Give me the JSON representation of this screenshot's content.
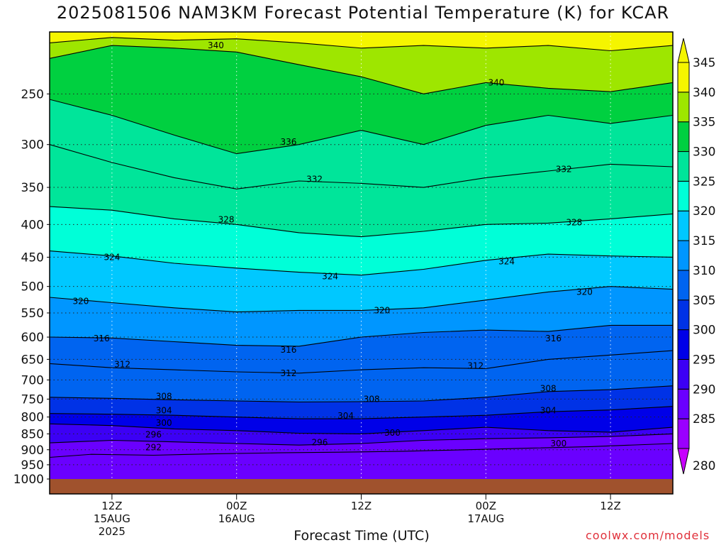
{
  "header": {
    "title": "2025081506 NAM3KM Forecast Potential Temperature (K) for KCAR"
  },
  "footer": {
    "credit": "coolwx.com/models"
  },
  "chart_data": {
    "type": "heatmap",
    "title": "2025081506 NAM3KM Forecast Potential Temperature (K) for KCAR",
    "xlabel": "Forecast Time (UTC)",
    "ylabel": "",
    "x_range_hours": [
      0,
      60
    ],
    "y_range_hpa": [
      1000,
      200
    ],
    "y_scale": "log-pressure",
    "grid": true,
    "y_ticks": [
      250,
      300,
      350,
      400,
      450,
      500,
      550,
      600,
      650,
      700,
      750,
      800,
      850,
      900,
      950,
      1000
    ],
    "y_tick_labels": [
      "250",
      "300",
      "350",
      "400",
      "450",
      "500",
      "550",
      "600",
      "650",
      "700",
      "750",
      "800",
      "850",
      "900",
      "950",
      "1000"
    ],
    "x_ticks": [
      {
        "hour": 6,
        "line1": "12Z",
        "line2": "15AUG",
        "line3": "2025"
      },
      {
        "hour": 18,
        "line1": "00Z",
        "line2": "16AUG",
        "line3": ""
      },
      {
        "hour": 30,
        "line1": "12Z",
        "line2": "",
        "line3": ""
      },
      {
        "hour": 42,
        "line1": "00Z",
        "line2": "17AUG",
        "line3": ""
      },
      {
        "hour": 54,
        "line1": "12Z",
        "line2": "",
        "line3": ""
      }
    ],
    "colorbar": {
      "levels": [
        280,
        285,
        290,
        295,
        300,
        305,
        310,
        315,
        320,
        325,
        330,
        335,
        340,
        345
      ],
      "labels": [
        "280",
        "285",
        "290",
        "295",
        "300",
        "305",
        "310",
        "315",
        "320",
        "325",
        "330",
        "335",
        "340",
        "345"
      ],
      "colors": [
        "#c800ff",
        "#9a00ff",
        "#6a00ff",
        "#3c00f5",
        "#0000e8",
        "#0032e6",
        "#0064f0",
        "#0096ff",
        "#00c8ff",
        "#00ffd8",
        "#00e59a",
        "#00d040",
        "#9ee600",
        "#f5f500"
      ],
      "placement": "right"
    },
    "contour_interval": 4,
    "contours": [
      {
        "level": 292,
        "points": [
          [
            0,
            925
          ],
          [
            4,
            915
          ],
          [
            10,
            918
          ],
          [
            16,
            913
          ],
          [
            22,
            910
          ],
          [
            28,
            908
          ],
          [
            34,
            905
          ],
          [
            40,
            900
          ],
          [
            46,
            895
          ],
          [
            52,
            890
          ],
          [
            60,
            880
          ]
        ]
      },
      {
        "level": 296,
        "points": [
          [
            0,
            878
          ],
          [
            6,
            870
          ],
          [
            12,
            875
          ],
          [
            18,
            880
          ],
          [
            24,
            885
          ],
          [
            30,
            880
          ],
          [
            36,
            870
          ],
          [
            42,
            865
          ],
          [
            48,
            862
          ],
          [
            54,
            858
          ],
          [
            60,
            850
          ]
        ]
      },
      {
        "level": 300,
        "points": [
          [
            0,
            820
          ],
          [
            6,
            825
          ],
          [
            12,
            835
          ],
          [
            18,
            840
          ],
          [
            24,
            848
          ],
          [
            30,
            850
          ],
          [
            36,
            840
          ],
          [
            42,
            830
          ],
          [
            48,
            840
          ],
          [
            54,
            845
          ],
          [
            60,
            830
          ]
        ]
      },
      {
        "level": 304,
        "points": [
          [
            0,
            790
          ],
          [
            6,
            792
          ],
          [
            12,
            795
          ],
          [
            18,
            800
          ],
          [
            24,
            805
          ],
          [
            30,
            805
          ],
          [
            36,
            800
          ],
          [
            42,
            795
          ],
          [
            48,
            785
          ],
          [
            54,
            780
          ],
          [
            60,
            770
          ]
        ]
      },
      {
        "level": 308,
        "points": [
          [
            0,
            745
          ],
          [
            6,
            748
          ],
          [
            12,
            752
          ],
          [
            18,
            755
          ],
          [
            24,
            758
          ],
          [
            30,
            757
          ],
          [
            36,
            755
          ],
          [
            42,
            745
          ],
          [
            48,
            730
          ],
          [
            54,
            725
          ],
          [
            60,
            715
          ]
        ]
      },
      {
        "level": 312,
        "points": [
          [
            0,
            660
          ],
          [
            6,
            670
          ],
          [
            12,
            675
          ],
          [
            18,
            680
          ],
          [
            24,
            683
          ],
          [
            30,
            675
          ],
          [
            36,
            670
          ],
          [
            42,
            672
          ],
          [
            48,
            650
          ],
          [
            54,
            640
          ],
          [
            60,
            630
          ]
        ]
      },
      {
        "level": 316,
        "points": [
          [
            0,
            600
          ],
          [
            6,
            602
          ],
          [
            12,
            610
          ],
          [
            18,
            618
          ],
          [
            24,
            620
          ],
          [
            30,
            600
          ],
          [
            36,
            590
          ],
          [
            42,
            585
          ],
          [
            48,
            588
          ],
          [
            54,
            575
          ],
          [
            60,
            575
          ]
        ]
      },
      {
        "level": 320,
        "points": [
          [
            0,
            520
          ],
          [
            6,
            530
          ],
          [
            12,
            540
          ],
          [
            18,
            548
          ],
          [
            24,
            545
          ],
          [
            30,
            545
          ],
          [
            36,
            540
          ],
          [
            42,
            525
          ],
          [
            48,
            510
          ],
          [
            54,
            500
          ],
          [
            60,
            505
          ]
        ]
      },
      {
        "level": 324,
        "points": [
          [
            0,
            440
          ],
          [
            6,
            448
          ],
          [
            12,
            460
          ],
          [
            18,
            468
          ],
          [
            24,
            475
          ],
          [
            30,
            480
          ],
          [
            36,
            470
          ],
          [
            42,
            455
          ],
          [
            48,
            445
          ],
          [
            54,
            448
          ],
          [
            60,
            450
          ]
        ]
      },
      {
        "level": 328,
        "points": [
          [
            0,
            375
          ],
          [
            6,
            380
          ],
          [
            12,
            392
          ],
          [
            18,
            400
          ],
          [
            24,
            412
          ],
          [
            30,
            418
          ],
          [
            36,
            410
          ],
          [
            42,
            400
          ],
          [
            48,
            398
          ],
          [
            54,
            392
          ],
          [
            60,
            385
          ]
        ]
      },
      {
        "level": 332,
        "points": [
          [
            0,
            300
          ],
          [
            6,
            320
          ],
          [
            12,
            338
          ],
          [
            18,
            352
          ],
          [
            24,
            342
          ],
          [
            30,
            345
          ],
          [
            36,
            350
          ],
          [
            42,
            338
          ],
          [
            48,
            330
          ],
          [
            54,
            322
          ],
          [
            60,
            325
          ]
        ]
      },
      {
        "level": 336,
        "points": [
          [
            0,
            255
          ],
          [
            6,
            270
          ],
          [
            12,
            290
          ],
          [
            18,
            310
          ],
          [
            24,
            300
          ],
          [
            30,
            285
          ],
          [
            36,
            300
          ],
          [
            42,
            280
          ],
          [
            48,
            270
          ],
          [
            54,
            278
          ],
          [
            60,
            270
          ]
        ]
      },
      {
        "level": 340,
        "points": [
          [
            0,
            220
          ],
          [
            6,
            210
          ],
          [
            12,
            212
          ],
          [
            18,
            215
          ],
          [
            24,
            225
          ],
          [
            30,
            235
          ],
          [
            36,
            250
          ],
          [
            42,
            240
          ],
          [
            48,
            245
          ],
          [
            54,
            248
          ],
          [
            60,
            240
          ]
        ]
      },
      {
        "level": 344,
        "points": [
          [
            0,
            208
          ],
          [
            6,
            204
          ],
          [
            12,
            206
          ],
          [
            18,
            205
          ],
          [
            24,
            208
          ],
          [
            30,
            212
          ],
          [
            36,
            210
          ],
          [
            42,
            212
          ],
          [
            48,
            210
          ],
          [
            54,
            214
          ],
          [
            60,
            210
          ]
        ]
      }
    ],
    "contour_labels": [
      {
        "text": "340",
        "hour": 16,
        "hpa": 210
      },
      {
        "text": "340",
        "hour": 43,
        "hpa": 240
      },
      {
        "text": "336",
        "hour": 23,
        "hpa": 297
      },
      {
        "text": "332",
        "hour": 25.5,
        "hpa": 340
      },
      {
        "text": "332",
        "hour": 49.5,
        "hpa": 328
      },
      {
        "text": "328",
        "hour": 17,
        "hpa": 393
      },
      {
        "text": "328",
        "hour": 50.5,
        "hpa": 397
      },
      {
        "text": "324",
        "hour": 6,
        "hpa": 450
      },
      {
        "text": "324",
        "hour": 27,
        "hpa": 482
      },
      {
        "text": "324",
        "hour": 44,
        "hpa": 457
      },
      {
        "text": "320",
        "hour": 3,
        "hpa": 527
      },
      {
        "text": "320",
        "hour": 32,
        "hpa": 545
      },
      {
        "text": "320",
        "hour": 51.5,
        "hpa": 510
      },
      {
        "text": "316",
        "hour": 5,
        "hpa": 603
      },
      {
        "text": "316",
        "hour": 23,
        "hpa": 628
      },
      {
        "text": "316",
        "hour": 48.5,
        "hpa": 603
      },
      {
        "text": "312",
        "hour": 7,
        "hpa": 662
      },
      {
        "text": "312",
        "hour": 23,
        "hpa": 683
      },
      {
        "text": "312",
        "hour": 41,
        "hpa": 665
      },
      {
        "text": "308",
        "hour": 11,
        "hpa": 743
      },
      {
        "text": "308",
        "hour": 31,
        "hpa": 750
      },
      {
        "text": "308",
        "hour": 48,
        "hpa": 722
      },
      {
        "text": "304",
        "hour": 11,
        "hpa": 782
      },
      {
        "text": "304",
        "hour": 28.5,
        "hpa": 797
      },
      {
        "text": "304",
        "hour": 48,
        "hpa": 782
      },
      {
        "text": "300",
        "hour": 11,
        "hpa": 817
      },
      {
        "text": "300",
        "hour": 33,
        "hpa": 847
      },
      {
        "text": "300",
        "hour": 49,
        "hpa": 880
      },
      {
        "text": "296",
        "hour": 10,
        "hpa": 852
      },
      {
        "text": "296",
        "hour": 26,
        "hpa": 877
      },
      {
        "text": "292",
        "hour": 10,
        "hpa": 893
      }
    ]
  }
}
